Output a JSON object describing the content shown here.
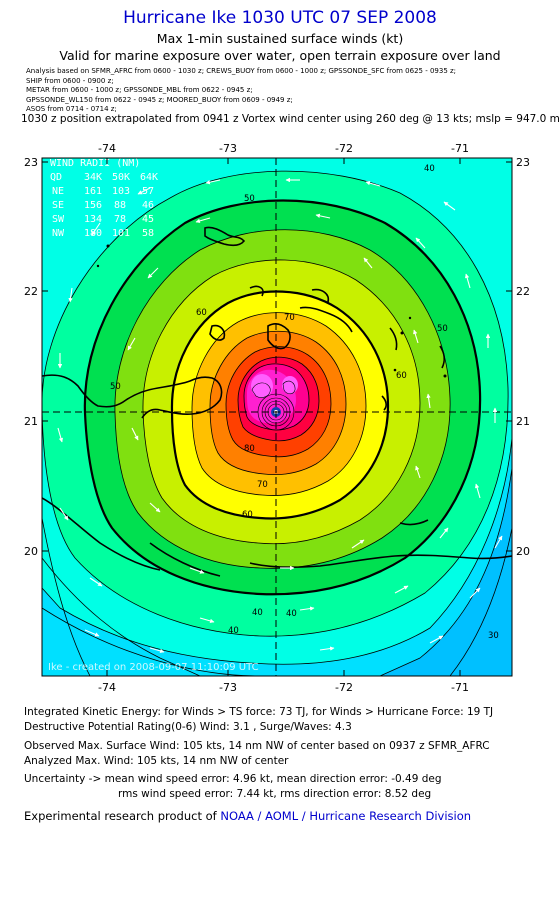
{
  "header": {
    "title": "Hurricane Ike 1030 UTC 07 SEP 2008",
    "subtitle1": "Max 1-min sustained surface winds (kt)",
    "subtitle2": "Valid for marine exposure over water, open terrain exposure over land",
    "analysis_lines": [
      "Analysis based on   SFMR_AFRC from 0600 - 1030 z;   CREWS_BUOY from 0600 - 1000 z;   GPSSONDE_SFC from 0625 - 0935 z;",
      "SHIP from 0600 - 0900 z;",
      "METAR from 0600 - 1000 z;   GPSSONDE_MBL from 0622 - 0945 z;",
      "GPSSONDE_WL150 from 0622 - 0945 z;   MOORED_BUOY from 0609 - 0949 z;",
      "ASOS from 0714 - 0714 z;"
    ],
    "position_line": "1030 z position extrapolated from 0941 z Vortex wind center using 260 deg @ 13 kts; mslp = 947.0 mb"
  },
  "map": {
    "lon_ticks": [
      "-74",
      "-73",
      "-72",
      "-71"
    ],
    "lat_ticks": [
      "23",
      "22",
      "21",
      "20"
    ],
    "contour_labels": [
      "40",
      "50",
      "60",
      "70",
      "80",
      "60",
      "50",
      "40",
      "50",
      "60",
      "70",
      "40",
      "40",
      "30"
    ],
    "wind_radii": {
      "title": "WIND RADII (NM)",
      "header": [
        "QD",
        "34K",
        "50K",
        "64K"
      ],
      "rows": [
        [
          "NE",
          "161",
          "103",
          "57"
        ],
        [
          "SE",
          "156",
          "88",
          "46"
        ],
        [
          "SW",
          "134",
          "78",
          "45"
        ],
        [
          "NW",
          "180",
          "101",
          "58"
        ]
      ]
    },
    "created": "Ike - created on 2008-09-07 11:10:09 UTC",
    "colors": {
      "band_25": "#00c0ff",
      "band_30": "#00e0ff",
      "band_35": "#00ffe6",
      "band_40": "#00ffa0",
      "band_50": "#00e050",
      "band_55": "#80e010",
      "band_60": "#c8f000",
      "band_65": "#ffff00",
      "band_70": "#ffc000",
      "band_75": "#ff8000",
      "band_80": "#ff4000",
      "band_85": "#ff0040",
      "band_90": "#ff0090",
      "band_95": "#ff20d0",
      "band_100": "#ff60ff",
      "eye": "#1040b0"
    }
  },
  "stats": {
    "ike_line": "Integrated Kinetic Energy:  for Winds > TS force: 73 TJ,  for Winds > Hurricane Force: 19 TJ",
    "dpr_line": "Destructive Potential Rating(0-6)   Wind: 3.1 , Surge/Waves: 4.3",
    "obs_line": "Observed Max. Surface Wind: 105 kts, 14 nm NW of center based on 0937 z SFMR_AFRC",
    "anal_line": "Analyzed Max. Wind: 105 kts, 14 nm NW of center",
    "unc_line1": "Uncertainty -> mean wind speed error: 4.96 kt,   mean direction error:  -0.49 deg",
    "unc_line2": "rms wind speed error: 7.44 kt,   rms direction error: 8.52 deg"
  },
  "footer": {
    "prefix": "Experimental research product of ",
    "org": "NOAA / AOML / Hurricane Research Division"
  }
}
